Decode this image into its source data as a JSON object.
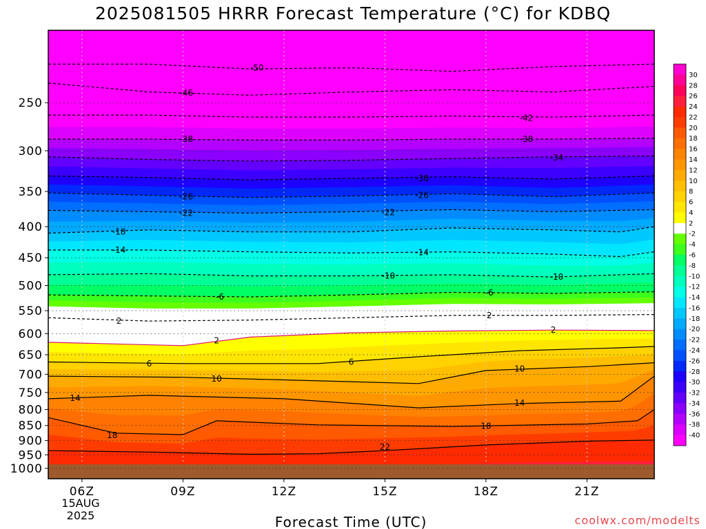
{
  "chart_data": {
    "type": "heatmap",
    "title": "2025081505 HRRR Forecast Temperature (°C) for KDBQ",
    "xlabel": "Forecast Time (UTC)",
    "ylabel": "",
    "x_ticks": [
      "06Z",
      "09Z",
      "12Z",
      "15Z",
      "18Z",
      "21Z"
    ],
    "x_tick_hours": [
      6,
      9,
      12,
      15,
      18,
      21
    ],
    "x_range_hours": [
      5,
      23
    ],
    "date_label": [
      "15AUG",
      "2025"
    ],
    "y_ticks": [
      250,
      300,
      350,
      400,
      450,
      500,
      550,
      600,
      650,
      700,
      750,
      800,
      850,
      900,
      950,
      1000
    ],
    "y_range_hpa": [
      190,
      1040
    ],
    "y_scale": "log-pressure (inverted)",
    "ground_level_hpa": 985,
    "colorbar": {
      "labels": [
        "30",
        "28",
        "26",
        "24",
        "22",
        "20",
        "18",
        "16",
        "14",
        "12",
        "10",
        "8",
        "6",
        "4",
        "2",
        "-2",
        "-4",
        "-6",
        "-8",
        "-10",
        "-12",
        "-14",
        "-16",
        "-18",
        "-20",
        "-22",
        "-24",
        "-26",
        "-28",
        "-30",
        "-32",
        "-34",
        "-36",
        "-38",
        "-40"
      ],
      "colors": [
        "#ff00d2",
        "#ff0096",
        "#ff005a",
        "#ff1e3c",
        "#ff2a00",
        "#ff3c00",
        "#ff5a00",
        "#ff6e00",
        "#ff8200",
        "#ff9600",
        "#ffaa00",
        "#ffbe00",
        "#ffd200",
        "#ffe600",
        "#ffff00",
        "#ffffff",
        "#64ff00",
        "#3cff1e",
        "#00ff64",
        "#00ff96",
        "#00ffbe",
        "#00ffe6",
        "#00e6ff",
        "#00c8ff",
        "#00aaff",
        "#008cff",
        "#006eff",
        "#0050ff",
        "#0028ff",
        "#1e00ff",
        "#3c00ff",
        "#6400ff",
        "#8c00ff",
        "#b400ff",
        "#dc00ff",
        "#ff00ff"
      ],
      "freezing_gap_color": "#ffffff"
    },
    "isotherms": [
      {
        "temp": 22,
        "label": "22",
        "style": "solid",
        "points": [
          [
            5,
            935
          ],
          [
            8,
            940
          ],
          [
            11,
            948
          ],
          [
            13,
            946
          ],
          [
            15,
            935
          ],
          [
            18,
            915
          ],
          [
            21,
            902
          ],
          [
            23,
            898
          ]
        ]
      },
      {
        "temp": 18,
        "label": "18",
        "style": "solid",
        "points": [
          [
            5,
            825
          ],
          [
            7,
            875
          ],
          [
            9,
            880
          ],
          [
            10,
            835
          ],
          [
            13,
            848
          ],
          [
            17,
            853
          ],
          [
            21,
            845
          ],
          [
            22.5,
            835
          ],
          [
            23,
            800
          ]
        ]
      },
      {
        "temp": 14,
        "label": "14",
        "style": "solid",
        "points": [
          [
            5,
            768
          ],
          [
            8,
            758
          ],
          [
            12,
            768
          ],
          [
            16,
            795
          ],
          [
            19,
            782
          ],
          [
            22,
            775
          ],
          [
            23,
            705
          ]
        ]
      },
      {
        "temp": 10,
        "label": "10",
        "style": "solid",
        "points": [
          [
            5,
            705
          ],
          [
            9,
            708
          ],
          [
            12,
            715
          ],
          [
            16,
            725
          ],
          [
            18,
            690
          ],
          [
            21,
            680
          ],
          [
            23,
            670
          ]
        ]
      },
      {
        "temp": 6,
        "label": "6",
        "style": "solid",
        "points": [
          [
            5,
            668
          ],
          [
            9,
            672
          ],
          [
            13,
            672
          ],
          [
            16,
            655
          ],
          [
            19,
            640
          ],
          [
            22,
            633
          ],
          [
            23,
            630
          ]
        ]
      },
      {
        "temp": 2,
        "label": "2",
        "style": "solid",
        "points": [
          [
            5,
            620
          ],
          [
            9,
            628
          ],
          [
            11,
            608
          ],
          [
            14,
            598
          ],
          [
            17,
            594
          ],
          [
            20,
            592
          ],
          [
            23,
            593
          ]
        ]
      },
      {
        "temp": 2,
        "label": "2",
        "style": "dashed",
        "points": [
          [
            5,
            565
          ],
          [
            8,
            572
          ],
          [
            11,
            570
          ],
          [
            14,
            565
          ],
          [
            17,
            560
          ],
          [
            20,
            560
          ],
          [
            23,
            558
          ]
        ]
      },
      {
        "temp": -6,
        "label": "-6",
        "style": "dashed",
        "points": [
          [
            5,
            518
          ],
          [
            8,
            520
          ],
          [
            11,
            522
          ],
          [
            14,
            518
          ],
          [
            17,
            513
          ],
          [
            20,
            515
          ],
          [
            23,
            512
          ]
        ]
      },
      {
        "temp": -10,
        "label": "-10",
        "style": "dashed",
        "points": [
          [
            5,
            480
          ],
          [
            8,
            478
          ],
          [
            11,
            482
          ],
          [
            14,
            482
          ],
          [
            17,
            480
          ],
          [
            20,
            484
          ],
          [
            23,
            478
          ]
        ]
      },
      {
        "temp": -14,
        "label": "-14",
        "style": "dashed",
        "points": [
          [
            5,
            437
          ],
          [
            8,
            437
          ],
          [
            11,
            440
          ],
          [
            14,
            442
          ],
          [
            17,
            440
          ],
          [
            20,
            444
          ],
          [
            22,
            448
          ],
          [
            23,
            440
          ]
        ]
      },
      {
        "temp": -18,
        "label": "-18",
        "style": "dashed",
        "points": [
          [
            5,
            410
          ],
          [
            8,
            405
          ],
          [
            11,
            408
          ],
          [
            14,
            408
          ],
          [
            17,
            402
          ],
          [
            20,
            405
          ],
          [
            22,
            408
          ],
          [
            23,
            400
          ]
        ]
      },
      {
        "temp": -22,
        "label": "-22",
        "style": "dashed",
        "points": [
          [
            5,
            376
          ],
          [
            8,
            378
          ],
          [
            11,
            380
          ],
          [
            14,
            378
          ],
          [
            17,
            375
          ],
          [
            20,
            378
          ],
          [
            23,
            375
          ]
        ]
      },
      {
        "temp": -26,
        "label": "-26",
        "style": "dashed",
        "points": [
          [
            5,
            352
          ],
          [
            8,
            355
          ],
          [
            11,
            358
          ],
          [
            14,
            356
          ],
          [
            17,
            353
          ],
          [
            20,
            357
          ],
          [
            23,
            352
          ]
        ]
      },
      {
        "temp": -30,
        "label": "-30",
        "style": "dashed",
        "points": [
          [
            5,
            330
          ],
          [
            8,
            332
          ],
          [
            11,
            335
          ],
          [
            14,
            333
          ],
          [
            17,
            331
          ],
          [
            20,
            334
          ],
          [
            23,
            330
          ]
        ]
      },
      {
        "temp": -34,
        "label": "-34",
        "style": "dashed",
        "points": [
          [
            5,
            307
          ],
          [
            8,
            310
          ],
          [
            11,
            312
          ],
          [
            14,
            311
          ],
          [
            17,
            309
          ],
          [
            20,
            307
          ],
          [
            23,
            306
          ]
        ]
      },
      {
        "temp": -38,
        "label": "-38",
        "style": "dashed",
        "points": [
          [
            5,
            287
          ],
          [
            8,
            287
          ],
          [
            11,
            288
          ],
          [
            14,
            288
          ],
          [
            17,
            287
          ],
          [
            20,
            287
          ],
          [
            23,
            286
          ]
        ]
      },
      {
        "temp": -42,
        "label": "-42",
        "style": "dashed",
        "points": [
          [
            5,
            262
          ],
          [
            8,
            262
          ],
          [
            11,
            264
          ],
          [
            14,
            264
          ],
          [
            17,
            263
          ],
          [
            20,
            264
          ],
          [
            23,
            262
          ]
        ]
      },
      {
        "temp": -46,
        "label": "-46",
        "style": "dashed",
        "points": [
          [
            5,
            232
          ],
          [
            8,
            240
          ],
          [
            11,
            243
          ],
          [
            14,
            240
          ],
          [
            17,
            238
          ],
          [
            20,
            240
          ],
          [
            23,
            235
          ]
        ]
      },
      {
        "temp": -50,
        "label": "-50",
        "style": "dashed",
        "points": [
          [
            5,
            216
          ],
          [
            8,
            216
          ],
          [
            11,
            220
          ],
          [
            14,
            219
          ],
          [
            17,
            222
          ],
          [
            20,
            218
          ],
          [
            23,
            216
          ]
        ]
      }
    ],
    "contour_labels": [
      {
        "text": "-50",
        "x": 11.2,
        "p": 219
      },
      {
        "text": "-46",
        "x": 9.1,
        "p": 241
      },
      {
        "text": "-42",
        "x": 19.2,
        "p": 265
      },
      {
        "text": "-38",
        "x": 9.1,
        "p": 287
      },
      {
        "text": "-38",
        "x": 19.2,
        "p": 287
      },
      {
        "text": "-34",
        "x": 20.1,
        "p": 308
      },
      {
        "text": "-30",
        "x": 16.1,
        "p": 333
      },
      {
        "text": "-26",
        "x": 9.1,
        "p": 357
      },
      {
        "text": "-26",
        "x": 16.1,
        "p": 355
      },
      {
        "text": "-22",
        "x": 9.1,
        "p": 380
      },
      {
        "text": "-22",
        "x": 15.1,
        "p": 379
      },
      {
        "text": "-18",
        "x": 7.1,
        "p": 408
      },
      {
        "text": "-14",
        "x": 7.1,
        "p": 437
      },
      {
        "text": "-14",
        "x": 16.1,
        "p": 441
      },
      {
        "text": "-10",
        "x": 15.1,
        "p": 482
      },
      {
        "text": "-10",
        "x": 20.1,
        "p": 484
      },
      {
        "text": "-6",
        "x": 10.1,
        "p": 522
      },
      {
        "text": "-6",
        "x": 18.1,
        "p": 514
      },
      {
        "text": "2",
        "x": 7.1,
        "p": 572
      },
      {
        "text": "2",
        "x": 18.1,
        "p": 560
      },
      {
        "text": "2",
        "x": 10.0,
        "p": 616
      },
      {
        "text": "2",
        "x": 20.0,
        "p": 592
      },
      {
        "text": "6",
        "x": 8.0,
        "p": 672
      },
      {
        "text": "6",
        "x": 14.0,
        "p": 668
      },
      {
        "text": "10",
        "x": 10.0,
        "p": 712
      },
      {
        "text": "10",
        "x": 19.0,
        "p": 686
      },
      {
        "text": "14",
        "x": 5.8,
        "p": 766
      },
      {
        "text": "14",
        "x": 19.0,
        "p": 780
      },
      {
        "text": "18",
        "x": 6.9,
        "p": 882
      },
      {
        "text": "18",
        "x": 18.0,
        "p": 852
      },
      {
        "text": "22",
        "x": 15.0,
        "p": 922
      }
    ]
  },
  "credit": "coolwx.com/modelts"
}
